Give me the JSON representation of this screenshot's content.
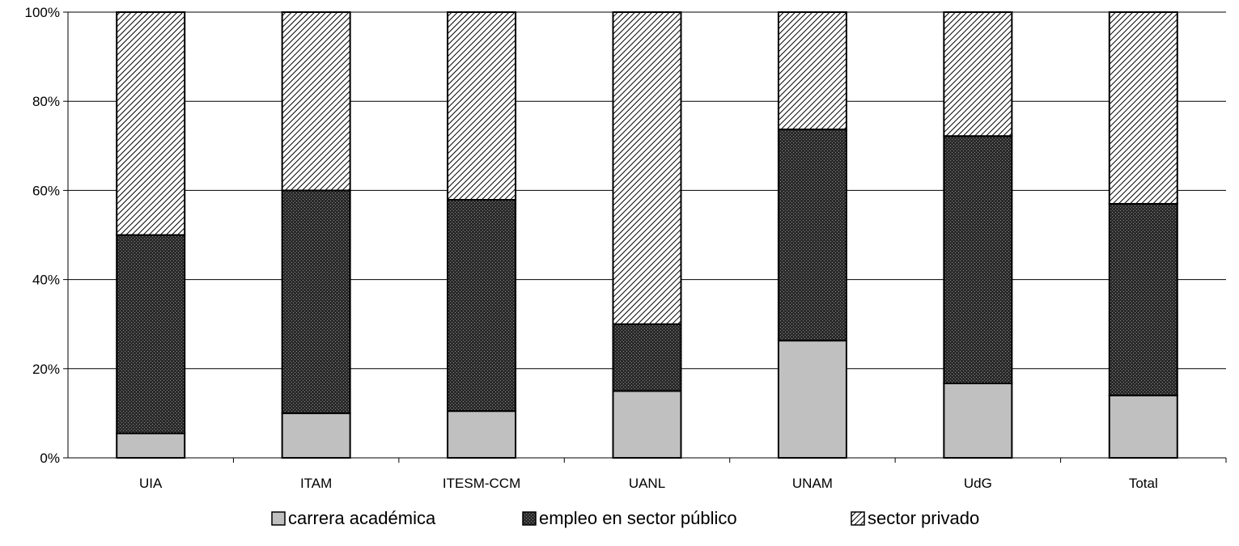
{
  "chart_data": {
    "type": "bar",
    "stacked": true,
    "title": "",
    "xlabel": "",
    "ylabel": "",
    "ylim": [
      0,
      100
    ],
    "y_ticks": [
      "0%",
      "20%",
      "40%",
      "60%",
      "80%",
      "100%"
    ],
    "grid": true,
    "legend_position": "bottom",
    "categories": [
      "UIA",
      "ITAM",
      "ITESM-CCM",
      "UANL",
      "UNAM",
      "UdG",
      "Total"
    ],
    "series": [
      {
        "name": "carrera académica",
        "pattern": "solid-gray",
        "color": "#c0c0c0",
        "values": [
          5.5,
          10,
          10.5,
          15,
          26.3,
          16.7,
          14
        ]
      },
      {
        "name": "empleo en sector público",
        "pattern": "dark-dots",
        "color": "#333333",
        "values": [
          44.5,
          50,
          47.4,
          15,
          47.4,
          55.5,
          43
        ]
      },
      {
        "name": "sector privado",
        "pattern": "diagonal-hatch",
        "color": "#ffffff",
        "values": [
          50,
          40,
          42.1,
          70,
          26.3,
          27.8,
          43
        ]
      }
    ]
  }
}
